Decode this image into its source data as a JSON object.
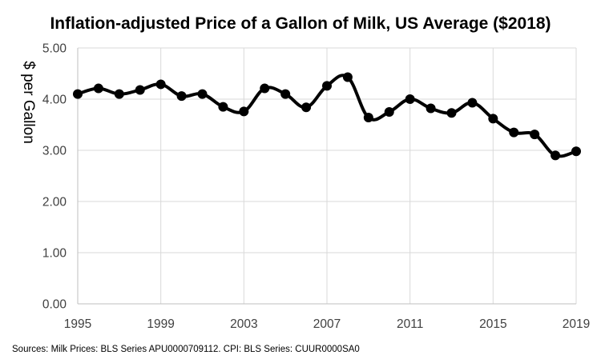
{
  "chart_data": {
    "type": "line",
    "title": "Inflation-adjusted Price of a Gallon of Milk, US Average ($2018)",
    "xlabel": "",
    "ylabel": "$ per Gallon",
    "xlim": [
      1995,
      2019
    ],
    "ylim": [
      0,
      5
    ],
    "x_ticks": [
      "1995",
      "1999",
      "2003",
      "2007",
      "2011",
      "2015",
      "2019"
    ],
    "y_ticks": [
      "0.00",
      "1.00",
      "2.00",
      "3.00",
      "4.00",
      "5.00"
    ],
    "grid": true,
    "legend": "none",
    "line_color": "#000000",
    "grid_color": "#d9d9d9",
    "series": [
      {
        "x": [
          1995,
          1996,
          1997,
          1998,
          1999,
          2000,
          2001,
          2002,
          2003,
          2004,
          2005,
          2006,
          2007,
          2008,
          2009,
          2010,
          2011,
          2012,
          2013,
          2014,
          2015,
          2016,
          2017,
          2018,
          2019
        ],
        "values": [
          4.1,
          4.21,
          4.1,
          4.18,
          4.29,
          4.06,
          4.1,
          3.85,
          3.76,
          4.21,
          4.1,
          3.84,
          4.26,
          4.43,
          3.64,
          3.75,
          4.0,
          3.82,
          3.73,
          3.93,
          3.62,
          3.35,
          3.31,
          2.9,
          2.98
        ]
      }
    ],
    "source": "Sources: Milk Prices: BLS Series APU0000709112. CPI: BLS Series: CUUR0000SA0"
  }
}
